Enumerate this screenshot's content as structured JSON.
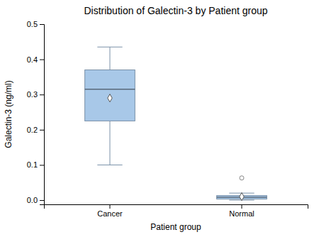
{
  "chart_data": {
    "type": "box",
    "title": "Distribution of Galectin-3 by Patient group",
    "xlabel": "Patient group",
    "ylabel": "Galectin-3 (ng/ml)",
    "categories": [
      "Cancer",
      "Normal"
    ],
    "boxes": [
      {
        "q1": 0.225,
        "median": 0.315,
        "q3": 0.37,
        "whisker_low": 0.1,
        "whisker_high": 0.435,
        "mean": 0.29,
        "outliers": []
      },
      {
        "q1": 0.003,
        "median": 0.008,
        "q3": 0.013,
        "whisker_low": 0.0,
        "whisker_high": 0.02,
        "mean": 0.01,
        "outliers": [
          0.063
        ]
      }
    ],
    "color": "#a8c8e8",
    "ylim": [
      -0.012,
      0.5
    ],
    "yticks": [
      {
        "value": 0.0,
        "label": "0.0"
      },
      0.1,
      0.2,
      0.3,
      0.4,
      0.5
    ],
    "grid": false
  }
}
